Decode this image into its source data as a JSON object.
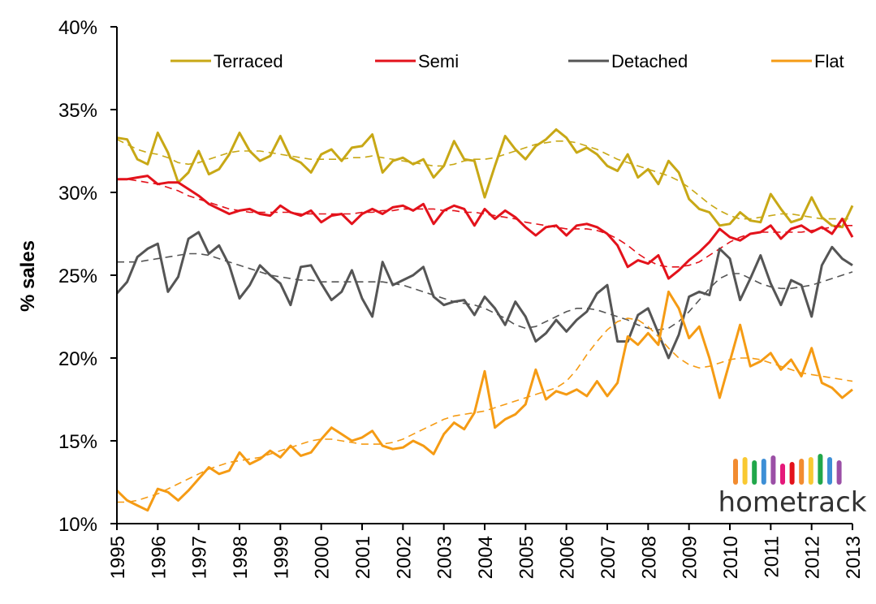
{
  "chart_data": {
    "type": "line",
    "title": "",
    "xlabel": "",
    "ylabel": "% sales",
    "ylim": [
      10,
      40
    ],
    "xlim": [
      1995,
      2013
    ],
    "y_ticks": [
      "10%",
      "15%",
      "20%",
      "25%",
      "30%",
      "35%",
      "40%"
    ],
    "y_tick_values": [
      10,
      15,
      20,
      25,
      30,
      35,
      40
    ],
    "x_ticks": [
      "1995",
      "1996",
      "1997",
      "1998",
      "1999",
      "2000",
      "2001",
      "2002",
      "2003",
      "2004",
      "2005",
      "2006",
      "2007",
      "2008",
      "2009",
      "2010",
      "2011",
      "2012",
      "2013"
    ],
    "x_tick_values": [
      1995,
      1996,
      1997,
      1998,
      1999,
      2000,
      2001,
      2002,
      2003,
      2004,
      2005,
      2006,
      2007,
      2008,
      2009,
      2010,
      2011,
      2012,
      2013
    ],
    "grid": false,
    "legend_position": "top",
    "x_step": 0.25,
    "x_start": 1995,
    "series": [
      {
        "name": "Terraced",
        "color": "#c8a816",
        "values": [
          33.3,
          33.2,
          32.0,
          31.7,
          33.6,
          32.4,
          30.6,
          31.2,
          32.5,
          31.1,
          31.4,
          32.3,
          33.6,
          32.5,
          31.9,
          32.2,
          33.4,
          32.1,
          31.8,
          31.2,
          32.3,
          32.6,
          31.9,
          32.7,
          32.8,
          33.5,
          31.2,
          31.9,
          32.1,
          31.7,
          32.0,
          30.9,
          31.6,
          33.1,
          32.0,
          31.9,
          29.7,
          31.6,
          33.4,
          32.6,
          32.0,
          32.8,
          33.2,
          33.8,
          33.3,
          32.4,
          32.7,
          32.3,
          31.6,
          31.3,
          32.3,
          30.9,
          31.4,
          30.5,
          31.9,
          31.2,
          29.6,
          29.0,
          28.8,
          28.0,
          28.1,
          28.8,
          28.3,
          28.2,
          29.9,
          29.0,
          28.2,
          28.4,
          29.7,
          28.5,
          28.0,
          27.9,
          29.2
        ],
        "trend": [
          33.2,
          32.9,
          32.6,
          32.4,
          32.3,
          32.1,
          31.8,
          31.7,
          31.8,
          32.0,
          32.2,
          32.4,
          32.5,
          32.5,
          32.5,
          32.4,
          32.3,
          32.2,
          32.1,
          32.0,
          32.0,
          32.0,
          32.0,
          32.1,
          32.1,
          32.2,
          32.1,
          32.0,
          31.9,
          31.8,
          31.7,
          31.6,
          31.6,
          31.7,
          31.9,
          32.0,
          32.0,
          32.1,
          32.3,
          32.5,
          32.7,
          32.9,
          33.0,
          33.1,
          33.1,
          33.0,
          32.8,
          32.6,
          32.3,
          32.0,
          31.8,
          31.6,
          31.4,
          31.2,
          31.0,
          30.7,
          30.3,
          29.8,
          29.3,
          28.9,
          28.6,
          28.4,
          28.4,
          28.5,
          28.6,
          28.7,
          28.7,
          28.6,
          28.5,
          28.4,
          28.4,
          28.4,
          28.4
        ]
      },
      {
        "name": "Semi",
        "color": "#e3121b",
        "values": [
          30.8,
          30.8,
          30.9,
          31.0,
          30.5,
          30.6,
          30.6,
          30.2,
          29.8,
          29.3,
          29.0,
          28.7,
          28.9,
          29.0,
          28.7,
          28.6,
          29.2,
          28.8,
          28.6,
          28.9,
          28.2,
          28.6,
          28.7,
          28.1,
          28.7,
          29.0,
          28.7,
          29.1,
          29.2,
          28.9,
          29.3,
          28.1,
          28.9,
          29.2,
          29.0,
          28.0,
          29.0,
          28.4,
          28.9,
          28.5,
          27.9,
          27.4,
          27.9,
          28.0,
          27.4,
          28.0,
          28.1,
          27.9,
          27.5,
          26.8,
          25.5,
          25.9,
          25.7,
          26.2,
          24.8,
          25.3,
          25.9,
          26.4,
          27.0,
          27.8,
          27.3,
          27.1,
          27.5,
          27.6,
          28.0,
          27.2,
          27.8,
          28.0,
          27.6,
          27.9,
          27.5,
          28.4,
          27.3
        ],
        "trend": [
          30.8,
          30.8,
          30.7,
          30.6,
          30.5,
          30.3,
          30.1,
          29.8,
          29.6,
          29.4,
          29.2,
          29.0,
          28.9,
          28.8,
          28.8,
          28.8,
          28.8,
          28.8,
          28.7,
          28.7,
          28.7,
          28.7,
          28.7,
          28.7,
          28.8,
          28.8,
          28.9,
          28.9,
          29.0,
          29.0,
          29.0,
          29.0,
          28.9,
          28.9,
          28.8,
          28.8,
          28.7,
          28.6,
          28.5,
          28.4,
          28.2,
          28.1,
          28.0,
          27.9,
          27.8,
          27.8,
          27.8,
          27.7,
          27.5,
          27.2,
          26.8,
          26.3,
          25.9,
          25.6,
          25.5,
          25.5,
          25.6,
          25.8,
          26.2,
          26.6,
          27.0,
          27.3,
          27.5,
          27.6,
          27.6,
          27.6,
          27.6,
          27.6,
          27.7,
          27.8,
          27.9,
          28.0,
          28.0
        ]
      },
      {
        "name": "Detached",
        "color": "#555555",
        "values": [
          23.9,
          24.6,
          26.1,
          26.6,
          26.9,
          24.0,
          24.9,
          27.2,
          27.6,
          26.3,
          26.8,
          25.6,
          23.6,
          24.4,
          25.6,
          25.0,
          24.5,
          23.2,
          25.5,
          25.6,
          24.5,
          23.5,
          24.0,
          25.3,
          23.6,
          22.5,
          25.8,
          24.4,
          24.7,
          25.0,
          25.5,
          23.7,
          23.2,
          23.4,
          23.5,
          22.6,
          23.7,
          23.0,
          22.0,
          23.4,
          22.5,
          21.0,
          21.5,
          22.3,
          21.6,
          22.3,
          22.8,
          23.9,
          24.4,
          21.0,
          21.0,
          22.6,
          23.0,
          21.5,
          20.0,
          21.4,
          23.7,
          24.0,
          23.8,
          26.6,
          26.0,
          23.5,
          24.8,
          26.2,
          24.5,
          23.2,
          24.7,
          24.4,
          22.5,
          25.6,
          26.7,
          26.0,
          25.6
        ],
        "trend": [
          25.8,
          25.8,
          25.8,
          25.9,
          26.0,
          26.1,
          26.2,
          26.3,
          26.3,
          26.2,
          26.0,
          25.8,
          25.6,
          25.4,
          25.2,
          25.0,
          24.9,
          24.8,
          24.7,
          24.7,
          24.6,
          24.6,
          24.6,
          24.6,
          24.6,
          24.6,
          24.6,
          24.5,
          24.4,
          24.2,
          24.0,
          23.8,
          23.6,
          23.4,
          23.3,
          23.2,
          23.0,
          22.7,
          22.4,
          22.0,
          21.8,
          21.9,
          22.2,
          22.5,
          22.8,
          23.0,
          23.0,
          22.9,
          22.7,
          22.5,
          22.3,
          22.0,
          21.8,
          21.7,
          21.8,
          22.2,
          22.8,
          23.5,
          24.2,
          24.8,
          25.1,
          25.1,
          24.8,
          24.5,
          24.3,
          24.2,
          24.2,
          24.3,
          24.4,
          24.6,
          24.8,
          25.0,
          25.2
        ]
      },
      {
        "name": "Flat",
        "color": "#f59b14",
        "values": [
          12.0,
          11.4,
          11.1,
          10.8,
          12.1,
          11.9,
          11.4,
          12.0,
          12.7,
          13.4,
          13.0,
          13.2,
          14.3,
          13.6,
          13.9,
          14.4,
          14.0,
          14.7,
          14.1,
          14.3,
          15.1,
          15.8,
          15.4,
          15.0,
          15.2,
          15.6,
          14.7,
          14.5,
          14.6,
          15.0,
          14.7,
          14.2,
          15.4,
          16.1,
          15.7,
          16.7,
          19.2,
          15.8,
          16.3,
          16.6,
          17.2,
          19.3,
          17.5,
          18.0,
          17.8,
          18.1,
          17.7,
          18.6,
          17.7,
          18.5,
          21.3,
          20.8,
          21.5,
          20.8,
          24.0,
          23.0,
          21.2,
          21.9,
          20.0,
          17.6,
          19.8,
          22.0,
          19.5,
          19.8,
          20.3,
          19.3,
          19.9,
          18.9,
          20.6,
          18.5,
          18.2,
          17.6,
          18.1
        ],
        "trend": [
          11.3,
          11.3,
          11.4,
          11.6,
          11.8,
          12.1,
          12.4,
          12.7,
          13.0,
          13.3,
          13.5,
          13.7,
          13.8,
          13.9,
          14.0,
          14.2,
          14.4,
          14.6,
          14.8,
          15.0,
          15.1,
          15.1,
          15.0,
          14.9,
          14.8,
          14.8,
          14.8,
          14.9,
          15.1,
          15.4,
          15.7,
          16.0,
          16.3,
          16.5,
          16.6,
          16.7,
          16.8,
          17.0,
          17.2,
          17.4,
          17.6,
          17.8,
          18.0,
          18.2,
          18.6,
          19.3,
          20.2,
          21.0,
          21.7,
          22.2,
          22.4,
          22.3,
          21.9,
          21.3,
          20.6,
          20.0,
          19.6,
          19.4,
          19.5,
          19.7,
          19.9,
          20.0,
          20.0,
          19.9,
          19.7,
          19.5,
          19.3,
          19.1,
          19.0,
          18.9,
          18.8,
          18.7,
          18.6
        ]
      }
    ]
  },
  "logo": {
    "text": "hometrack",
    "bar_colors": [
      "#f28c30",
      "#f9c932",
      "#21a74a",
      "#3d8fd6",
      "#9b4fa6",
      "#e5197a",
      "#e3121b",
      "#f28c30",
      "#f9c932",
      "#21a74a",
      "#3d8fd6",
      "#9b4fa6"
    ]
  }
}
